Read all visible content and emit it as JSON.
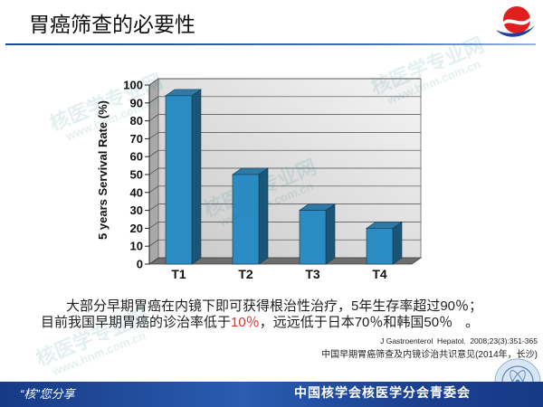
{
  "slide": {
    "title": "胃癌筛查的必要性",
    "body_line1": "大部分早期胃癌在内镜下即可获得根治性治疗，5年生存率超过90％；",
    "body_line2": {
      "part1": "目前我国早期胃癌的诊治率低于",
      "highlight": "10％",
      "part2": "，远远低于日本70％和韩国50％",
      "part3": "。"
    },
    "reference1": "J Gastroenterol  Hepatol.  2008;23(3):351-365",
    "reference2": "中国早期胃癌筛查及内镜诊治共识意见(2014年，长沙)"
  },
  "footer": {
    "left": "“核”您分享",
    "right": "中国核学会核医学分会青委会"
  },
  "watermark": {
    "cn": "核医学专业网",
    "url": "www.hnm.com.cn"
  },
  "icons": {
    "header_logo": "swoosh-logo-icon",
    "footer_emblem": "society-emblem-icon"
  },
  "colors": {
    "accent": "#1a4a9c",
    "highlight": "#e0302a",
    "bar_front": "#2b8cc4",
    "bar_side": "#1a5577",
    "bar_top": "#2f79a6",
    "footer": "#173a86"
  },
  "chart_data": {
    "type": "bar",
    "style": "3d-column",
    "categories": [
      "T1",
      "T2",
      "T3",
      "T4"
    ],
    "values": [
      94,
      50,
      30,
      20
    ],
    "title": "",
    "xlabel": "",
    "ylabel": "5 years Servival Rate (%)",
    "ylim": [
      0,
      100
    ],
    "yticks": [
      0,
      10,
      20,
      30,
      40,
      50,
      60,
      70,
      80,
      90,
      100
    ],
    "grid": true,
    "legend": "none"
  }
}
